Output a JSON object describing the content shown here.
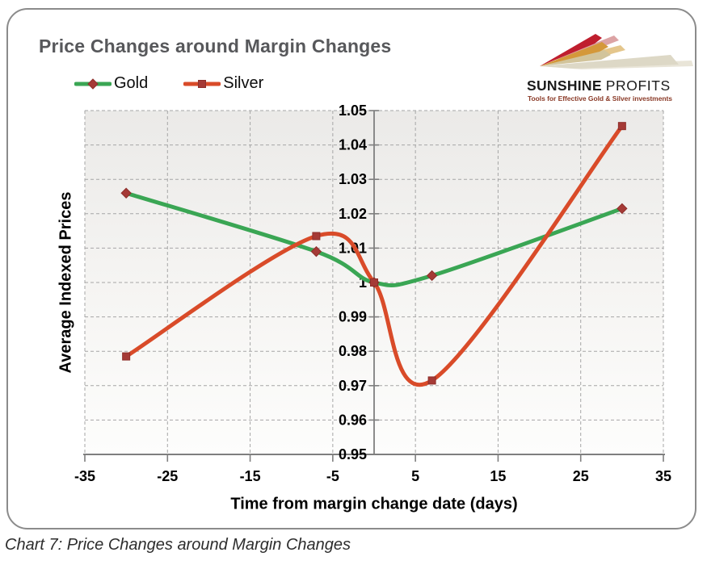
{
  "header": {
    "title": "Price Changes around Margin Changes",
    "logo": {
      "brand_bold": "SUNSHINE",
      "brand_light": "PROFITS",
      "tagline": "Tools for Effective Gold & Silver investments"
    }
  },
  "caption": "Chart 7: Price Changes around Margin Changes",
  "chart_data": {
    "type": "line",
    "title": "Price Changes around Margin Changes",
    "xlabel": "Time from margin change date (days)",
    "ylabel": "Average Indexed Prices",
    "x": [
      -30,
      -7,
      0,
      7,
      30
    ],
    "series": [
      {
        "name": "Gold",
        "color": "#3aa654",
        "marker": "diamond",
        "marker_color": "#a53a36",
        "values": [
          1.026,
          1.009,
          1.0,
          1.002,
          1.0215
        ]
      },
      {
        "name": "Silver",
        "color": "#d94b29",
        "marker": "square",
        "marker_color": "#a53a36",
        "values": [
          0.9785,
          1.0135,
          1.0,
          0.9715,
          1.0455
        ]
      }
    ],
    "xlim": [
      -35,
      35
    ],
    "ylim": [
      0.95,
      1.05
    ],
    "xticks": [
      -35,
      -25,
      -15,
      -5,
      5,
      15,
      25,
      35
    ],
    "yticks": [
      0.95,
      0.96,
      0.97,
      0.98,
      0.99,
      1,
      1.01,
      1.02,
      1.03,
      1.04,
      1.05
    ],
    "grid": "dashed",
    "grid_color": "#a6a6a6",
    "axis_color": "#7f7f7f",
    "smooth": true,
    "legend_position": "top-left"
  }
}
